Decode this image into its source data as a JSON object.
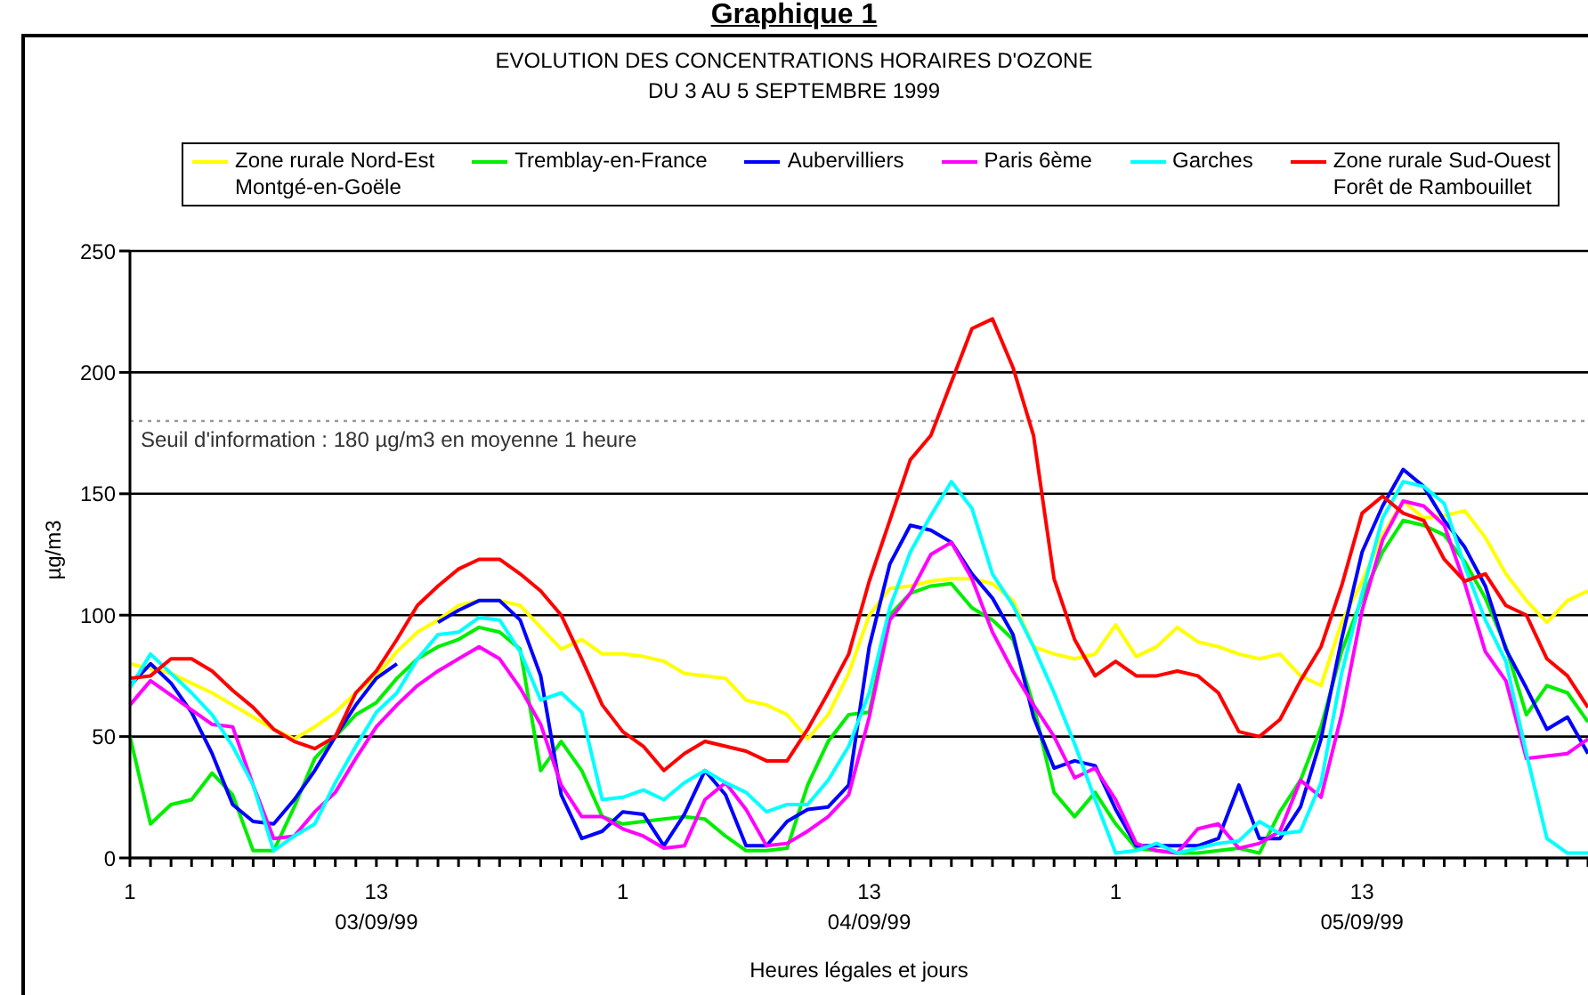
{
  "chart_data": {
    "type": "line",
    "title": "Graphique 1",
    "subtitle": "EVOLUTION DES CONCENTRATIONS HORAIRES D'OZONE\nDU 3 AU 5 SEPTEMBRE 1999",
    "xlabel": "Heures légales et jours",
    "ylabel": "µg/m3",
    "categories": [
      "1",
      null,
      null,
      null,
      null,
      null,
      null,
      null,
      null,
      null,
      null,
      null,
      "13\n03/09/99",
      null,
      null,
      null,
      null,
      null,
      null,
      null,
      null,
      null,
      null,
      null,
      "1",
      null,
      null,
      null,
      null,
      null,
      null,
      null,
      null,
      null,
      null,
      null,
      "13\n04/09/99",
      null,
      null,
      null,
      null,
      null,
      null,
      null,
      null,
      null,
      null,
      null,
      "1",
      null,
      null,
      null,
      null,
      null,
      null,
      null,
      null,
      null,
      null,
      null,
      "13\n05/09/99",
      null,
      null,
      null,
      null,
      null,
      null,
      null,
      null,
      null,
      null,
      null
    ],
    "ylim": [
      0,
      250
    ],
    "yticks": [
      0,
      50,
      100,
      150,
      200,
      250
    ],
    "grid": "y",
    "legend": "top",
    "marker": "none",
    "line_style": "solid",
    "ref_lines": [
      {
        "axis": "y",
        "value": 180,
        "label": "Seuil d'information : 180 µg/m3 en moyenne 1 heure",
        "color": "#999999",
        "line_style": "dotted"
      }
    ],
    "series": [
      {
        "name": "Zone rurale Nord-Est\nMontgé-en-Goële",
        "color": "#ffff00",
        "values": [
          80,
          78,
          76,
          72,
          68,
          63,
          58,
          53,
          49,
          54,
          60,
          68,
          75,
          85,
          93,
          98,
          104,
          106,
          106,
          104,
          95,
          86,
          90,
          84,
          84,
          83,
          81,
          76,
          75,
          74,
          65,
          63,
          59,
          49,
          59,
          76,
          100,
          111,
          112,
          114,
          115,
          115,
          113,
          106,
          87,
          84,
          82,
          84,
          96,
          83,
          87,
          95,
          89,
          87,
          84,
          82,
          84,
          75,
          71,
          97,
          114,
          133,
          147,
          140,
          141,
          143,
          132,
          117,
          106,
          97,
          106,
          110
        ]
      },
      {
        "name": "Tremblay-en-France",
        "color": "#00ee00",
        "values": [
          50,
          14,
          22,
          24,
          35,
          26,
          3,
          3,
          21,
          41,
          50,
          59,
          64,
          74,
          82,
          87,
          90,
          95,
          93,
          86,
          36,
          48,
          36,
          17,
          14,
          15,
          16,
          17,
          16,
          9,
          3,
          3,
          4,
          30,
          48,
          59,
          60,
          100,
          109,
          112,
          113,
          103,
          98,
          90,
          63,
          27,
          17,
          27,
          14,
          4,
          3,
          2,
          2,
          3,
          4,
          2,
          19,
          32,
          54,
          85,
          107,
          126,
          139,
          137,
          133,
          122,
          107,
          87,
          59,
          71,
          68,
          56
        ]
      },
      {
        "name": "Aubervilliers",
        "color": "#0000ff",
        "values": [
          71,
          80,
          72,
          60,
          43,
          22,
          15,
          14,
          24,
          36,
          50,
          63,
          74,
          80,
          null,
          97,
          102,
          106,
          106,
          98,
          75,
          26,
          8,
          11,
          19,
          18,
          5,
          18,
          36,
          26,
          5,
          5,
          15,
          20,
          21,
          30,
          87,
          121,
          137,
          135,
          130,
          117,
          107,
          92,
          58,
          37,
          40,
          38,
          20,
          5,
          5,
          5,
          5,
          8,
          30,
          8,
          8,
          21,
          49,
          90,
          126,
          145,
          160,
          153,
          139,
          128,
          112,
          86,
          70,
          53,
          58,
          43
        ]
      },
      {
        "name": "Paris 6ème",
        "color": "#ff00ff",
        "values": [
          63,
          73,
          67,
          61,
          55,
          54,
          30,
          8,
          9,
          19,
          27,
          41,
          54,
          63,
          71,
          77,
          82,
          87,
          82,
          70,
          55,
          30,
          17,
          17,
          12,
          9,
          4,
          5,
          24,
          31,
          20,
          5,
          6,
          11,
          17,
          26,
          58,
          98,
          109,
          125,
          130,
          115,
          93,
          77,
          63,
          50,
          33,
          37,
          24,
          6,
          3,
          2,
          12,
          14,
          4,
          6,
          11,
          32,
          25,
          59,
          102,
          131,
          147,
          145,
          137,
          113,
          85,
          73,
          41,
          42,
          43,
          49
        ]
      },
      {
        "name": "Garches",
        "color": "#00ffff",
        "values": [
          70,
          84,
          76,
          68,
          59,
          46,
          30,
          3,
          9,
          14,
          31,
          46,
          60,
          68,
          82,
          92,
          93,
          99,
          98,
          85,
          65,
          68,
          60,
          24,
          25,
          28,
          24,
          31,
          36,
          31,
          27,
          19,
          22,
          22,
          32,
          46,
          68,
          103,
          126,
          141,
          155,
          144,
          117,
          104,
          87,
          68,
          47,
          24,
          2,
          3,
          6,
          2,
          4,
          6,
          7,
          15,
          10,
          11,
          31,
          76,
          109,
          140,
          155,
          153,
          146,
          120,
          98,
          81,
          43,
          8,
          2,
          2
        ]
      },
      {
        "name": "Zone rurale Sud-Ouest\nForêt de Rambouillet",
        "color": "#ff0000",
        "values": [
          74,
          75,
          82,
          82,
          77,
          69,
          62,
          53,
          48,
          45,
          50,
          68,
          77,
          90,
          104,
          112,
          119,
          123,
          123,
          117,
          110,
          100,
          82,
          63,
          52,
          46,
          36,
          43,
          48,
          46,
          44,
          40,
          40,
          53,
          68,
          84,
          114,
          139,
          164,
          174,
          196,
          218,
          222,
          202,
          174,
          115,
          90,
          75,
          81,
          75,
          75,
          77,
          75,
          68,
          52,
          50,
          57,
          73,
          87,
          112,
          142,
          149,
          142,
          139,
          123,
          114,
          117,
          104,
          100,
          82,
          75,
          62
        ]
      }
    ]
  }
}
